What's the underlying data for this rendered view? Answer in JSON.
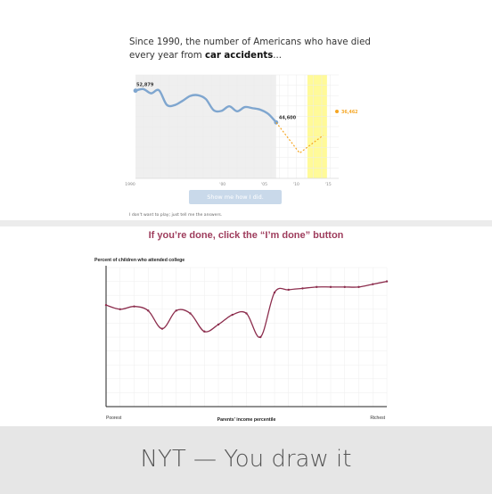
{
  "intro": {
    "line1": "Since 1990, the number of Americans who have died",
    "line2_prefix": "every year from ",
    "line2_bold": "car accidents",
    "line2_suffix": "..."
  },
  "car_chart": {
    "start_label": "52,879",
    "end_known_label": "44,600",
    "answer_label": "36,462",
    "x_ticks": [
      "1990",
      "'00",
      "'05",
      "'10",
      "'15"
    ]
  },
  "show_button_label": "Show me how I did.",
  "skip_link_label": "I don't want to play; just tell me the answers.",
  "done_heading": "If you’re done, click the “I’m done” button",
  "college_chart": {
    "title": "Percent of children who attended college",
    "xlabel": "Parents’ income percentile",
    "poorest_label": "Poorest",
    "richest_label": "Richest"
  },
  "caption": "NYT — You draw it",
  "colors": {
    "blue_line": "#7fa6cf",
    "answer_orange": "#f5a623",
    "answer_band": "#fffa99",
    "drawn_line": "#8c2d4d",
    "heading": "#9e3c5c"
  },
  "chart_data": [
    {
      "type": "line",
      "title": "",
      "xlabel": "",
      "ylabel": "",
      "x_tick_labels": [
        "1990",
        "'00",
        "'05",
        "'10",
        "'15"
      ],
      "series": [
        {
          "x": [
            1990,
            1991,
            1992,
            1993,
            1994,
            1995,
            1996,
            1997,
            1998,
            1999,
            2000,
            2001,
            2002,
            2003,
            2004,
            2005,
            2006,
            2007,
            2008
          ],
          "values": [
            52879,
            53300,
            52200,
            53000,
            49200,
            49100,
            50200,
            51500,
            51700,
            50700,
            47800,
            47600,
            48800,
            47500,
            48600,
            48300,
            47900,
            46800,
            44600
          ]
        },
        {
          "x": [
            2008,
            2011,
            2014
          ],
          "values": [
            44600,
            36600,
            41200
          ]
        }
      ],
      "annotations": [
        "52,879",
        "44,600",
        "36,462"
      ]
    },
    {
      "type": "line",
      "title": "Percent of children who attended college",
      "xlabel": "Parents’ income percentile",
      "ylabel": "",
      "x_tick_labels": [
        "Poorest",
        "Richest"
      ],
      "ylim": [
        0,
        100
      ],
      "series": [
        {
          "x": [
            0,
            5,
            10,
            15,
            20,
            25,
            30,
            35,
            40,
            45,
            50,
            55,
            60,
            65,
            70,
            75,
            80,
            85,
            90,
            95,
            100
          ],
          "values": [
            73,
            70,
            72,
            69,
            56,
            69,
            67,
            54,
            59,
            66,
            67,
            50,
            82,
            84,
            85,
            86,
            86,
            86,
            86,
            88,
            90
          ]
        }
      ]
    }
  ]
}
